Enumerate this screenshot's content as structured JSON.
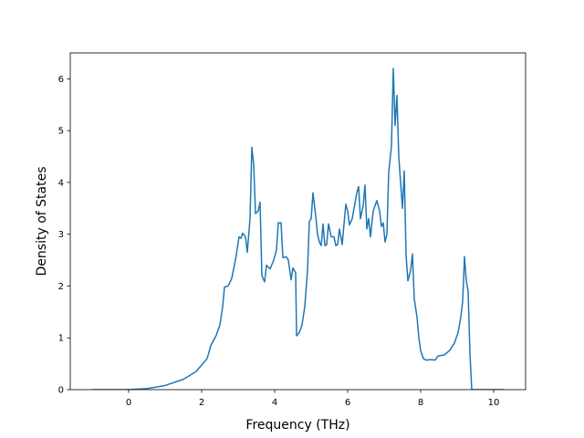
{
  "chart_data": {
    "type": "line",
    "xlabel": "Frequency (THz)",
    "ylabel": "Density of States",
    "xlim": [
      -1.6,
      10.875
    ],
    "ylim": [
      0,
      6.5
    ],
    "xticks": [
      0,
      2,
      4,
      6,
      8,
      10
    ],
    "yticks": [
      0,
      1,
      2,
      3,
      4,
      5,
      6
    ],
    "grid": false,
    "series": [
      {
        "color": "#1f77b4",
        "x": [
          -1,
          0,
          0.5,
          1,
          1.5,
          1.85,
          2.15,
          2.25,
          2.4,
          2.5,
          2.575,
          2.625,
          2.725,
          2.825,
          2.925,
          3.025,
          3.075,
          3.125,
          3.2,
          3.25,
          3.325,
          3.375,
          3.425,
          3.475,
          3.55,
          3.6,
          3.65,
          3.725,
          3.775,
          3.875,
          3.975,
          4.05,
          4.1,
          4.175,
          4.225,
          4.325,
          4.375,
          4.45,
          4.5,
          4.575,
          4.6,
          4.675,
          4.75,
          4.825,
          4.9,
          4.95,
          5.0,
          5.05,
          5.125,
          5.175,
          5.225,
          5.275,
          5.325,
          5.375,
          5.425,
          5.475,
          5.55,
          5.625,
          5.675,
          5.725,
          5.775,
          5.85,
          5.9,
          5.95,
          6.0,
          6.05,
          6.125,
          6.175,
          6.25,
          6.3,
          6.35,
          6.425,
          6.475,
          6.525,
          6.575,
          6.625,
          6.7,
          6.8,
          6.875,
          6.925,
          6.975,
          7.025,
          7.075,
          7.125,
          7.2,
          7.25,
          7.3,
          7.35,
          7.4,
          7.45,
          7.5,
          7.55,
          7.6,
          7.65,
          7.725,
          7.775,
          7.825,
          7.9,
          7.95,
          8.0,
          8.075,
          8.15,
          8.275,
          8.4,
          8.475,
          8.65,
          8.8,
          8.925,
          9.025,
          9.1,
          9.15,
          9.175,
          9.2,
          9.25,
          9.3,
          9.35,
          9.4,
          10.3
        ],
        "values": [
          0,
          0,
          0.02,
          0.08,
          0.2,
          0.35,
          0.6,
          0.85,
          1.05,
          1.25,
          1.6,
          1.98,
          2.0,
          2.15,
          2.5,
          2.95,
          2.92,
          3.02,
          2.95,
          2.65,
          3.3,
          4.68,
          4.35,
          3.4,
          3.45,
          3.62,
          2.2,
          2.08,
          2.4,
          2.33,
          2.5,
          2.7,
          3.22,
          3.22,
          2.55,
          2.56,
          2.5,
          2.12,
          2.35,
          2.25,
          1.04,
          1.1,
          1.25,
          1.6,
          2.3,
          3.25,
          3.3,
          3.8,
          3.35,
          3.0,
          2.85,
          2.78,
          3.2,
          2.78,
          2.8,
          3.2,
          2.95,
          2.95,
          2.78,
          2.8,
          3.1,
          2.8,
          3.2,
          3.58,
          3.45,
          3.18,
          3.3,
          3.5,
          3.8,
          3.92,
          3.3,
          3.55,
          3.95,
          3.1,
          3.3,
          2.95,
          3.45,
          3.65,
          3.45,
          3.15,
          3.22,
          2.85,
          3.0,
          4.2,
          4.7,
          6.2,
          5.1,
          5.68,
          4.5,
          4.0,
          3.5,
          4.22,
          2.6,
          2.1,
          2.3,
          2.62,
          1.75,
          1.4,
          1.0,
          0.75,
          0.6,
          0.57,
          0.58,
          0.57,
          0.65,
          0.67,
          0.76,
          0.9,
          1.1,
          1.4,
          1.7,
          2.1,
          2.57,
          2.1,
          1.9,
          0.7,
          0,
          0
        ]
      }
    ]
  }
}
